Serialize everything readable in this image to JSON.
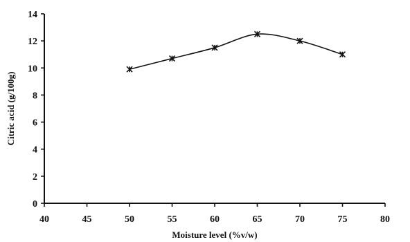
{
  "chart_data": {
    "type": "line",
    "title": "",
    "xlabel": "Moisture level (%v/w)",
    "ylabel": "Citric acid (g/100g)",
    "xlim": [
      40,
      80
    ],
    "ylim": [
      0,
      14
    ],
    "x_ticks": [
      "40",
      "45",
      "50",
      "55",
      "60",
      "65",
      "70",
      "75",
      "80"
    ],
    "y_ticks": [
      "0",
      "2",
      "4",
      "6",
      "8",
      "10",
      "12",
      "14"
    ],
    "grid": false,
    "smooth": true,
    "marker": "x",
    "series": [
      {
        "x": [
          50,
          55,
          60,
          65,
          70,
          75
        ],
        "values": [
          9.9,
          10.7,
          11.5,
          12.5,
          12.0,
          11.0
        ]
      }
    ]
  }
}
